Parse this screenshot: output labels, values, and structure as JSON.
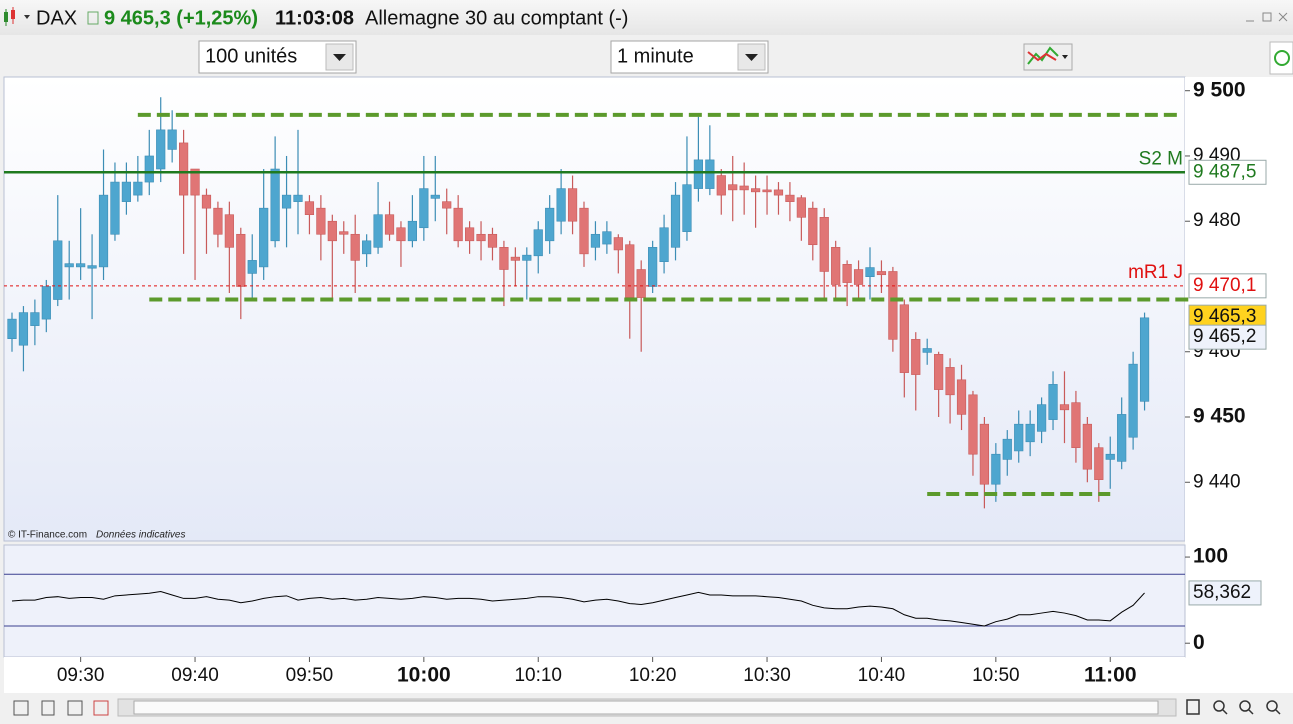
{
  "header": {
    "symbol": "DAX",
    "quote": "9 465,3 (+1,25%)",
    "time": "11:03:08",
    "description": "Allemagne 30 au comptant (-)"
  },
  "toolbar": {
    "quantity": "100 unités",
    "timeframe": "1 minute"
  },
  "chart_data": [
    {
      "type": "candlestick",
      "credit": "© IT-Finance.com",
      "note": "Données indicatives",
      "up_color": "#4ea6cf",
      "down_color": "#e07575",
      "x": [
        "09:24",
        "09:25",
        "09:26",
        "09:27",
        "09:28",
        "09:29",
        "09:30",
        "09:31",
        "09:32",
        "09:33",
        "09:34",
        "09:35",
        "09:36",
        "09:37",
        "09:38",
        "09:39",
        "09:40",
        "09:41",
        "09:42",
        "09:43",
        "09:44",
        "09:45",
        "09:46",
        "09:47",
        "09:48",
        "09:49",
        "09:50",
        "09:51",
        "09:52",
        "09:53",
        "09:54",
        "09:55",
        "09:56",
        "09:57",
        "09:58",
        "09:59",
        "10:00",
        "10:01",
        "10:02",
        "10:03",
        "10:04",
        "10:05",
        "10:06",
        "10:07",
        "10:08",
        "10:09",
        "10:10",
        "10:11",
        "10:12",
        "10:13",
        "10:14",
        "10:15",
        "10:16",
        "10:17",
        "10:18",
        "10:19",
        "10:20",
        "10:21",
        "10:22",
        "10:23",
        "10:24",
        "10:25",
        "10:26",
        "10:27",
        "10:28",
        "10:29",
        "10:30",
        "10:31",
        "10:32",
        "10:33",
        "10:34",
        "10:35",
        "10:36",
        "10:37",
        "10:38",
        "10:39",
        "10:40",
        "10:41",
        "10:42",
        "10:43",
        "10:44",
        "10:45",
        "10:46",
        "10:47",
        "10:48",
        "10:49",
        "10:50",
        "10:51",
        "10:52",
        "10:53",
        "10:54",
        "10:55",
        "10:56",
        "10:57",
        "10:58",
        "10:59",
        "11:00",
        "11:01",
        "11:02",
        "11:03"
      ],
      "open": [
        9462,
        9461,
        9464,
        9465,
        9468,
        9473,
        9473,
        9472.8,
        9473,
        9478,
        9483,
        9484,
        9486,
        9488,
        9491,
        9492,
        9488,
        9484,
        9482,
        9481,
        9478,
        9472,
        9473,
        9477,
        9482,
        9483,
        9483,
        9482,
        9480,
        9478.4,
        9478,
        9475,
        9476,
        9481,
        9479,
        9477,
        9479,
        9483.5,
        9483,
        9482,
        9479,
        9478,
        9478,
        9476,
        9474.5,
        9474,
        9474.7,
        9477,
        9480,
        9485,
        9482,
        9476,
        9476.5,
        9477.5,
        9476.4,
        9472.6,
        9470,
        9473.8,
        9476,
        9478.4,
        9485,
        9485,
        9487,
        9485.6,
        9485.4,
        9485,
        9484.8,
        9484.8,
        9484,
        9483.6,
        9482,
        9480.6,
        9476,
        9473.4,
        9472.6,
        9471.5,
        9472.3,
        9472.3,
        9467.2,
        9461.9,
        9459.9,
        9459.6,
        9457.6,
        9455.7,
        9453.4,
        9448.9,
        9439.7,
        9443.5,
        9444.8,
        9446.2,
        9447.8,
        9449.6,
        9451.9,
        9452.2,
        9448.9,
        9445.3,
        9443.5,
        9443.2,
        9446.9,
        9452.4
      ],
      "high": [
        9466,
        9467,
        9468,
        9471,
        9484,
        9477,
        9482,
        9478,
        9491,
        9489,
        9489,
        9490,
        9494,
        9499,
        9497,
        9494,
        9488,
        9485,
        9483,
        9483,
        9479,
        9478,
        9488,
        9493,
        9490,
        9494,
        9484,
        9484,
        9481,
        9480,
        9481,
        9478,
        9486,
        9483,
        9480,
        9484,
        9490,
        9490,
        9485,
        9484,
        9480,
        9480,
        9479,
        9477,
        9476,
        9476,
        9480,
        9484,
        9488,
        9487,
        9483,
        9480,
        9480,
        9478,
        9477,
        9474,
        9477,
        9481,
        9486,
        9493,
        9496,
        9494.7,
        9488,
        9490,
        9489,
        9487,
        9487,
        9486,
        9486,
        9484,
        9483,
        9482,
        9477,
        9474,
        9474,
        9476,
        9474,
        9473,
        9468,
        9463,
        9462,
        9460,
        9459,
        9458,
        9454,
        9450,
        9446,
        9448,
        9451,
        9451,
        9453,
        9457,
        9457,
        9454,
        9450,
        9446,
        9447,
        9453,
        9460,
        9466
      ],
      "low": [
        9460,
        9457,
        9461,
        9463,
        9467,
        9468,
        9471,
        9465,
        9471,
        9477,
        9481,
        9483,
        9484,
        9486,
        9489,
        9475,
        9471,
        9475,
        9476,
        9469,
        9465,
        9468,
        9471,
        9476,
        9476,
        9478,
        9478,
        9474,
        9468,
        9475,
        9469,
        9473,
        9475,
        9477,
        9473,
        9476,
        9477,
        9480,
        9478,
        9476,
        9475,
        9474,
        9474,
        9467,
        9470,
        9468,
        9472,
        9475,
        9478,
        9478,
        9473,
        9474,
        9475,
        9472,
        9462,
        9460,
        9469,
        9472,
        9474,
        9477,
        9483,
        9484,
        9481,
        9480,
        9481,
        9479,
        9481,
        9481,
        9480,
        9477,
        9474,
        9468,
        9468,
        9467,
        9468,
        9468,
        9469,
        9460,
        9453,
        9451,
        9458,
        9450,
        9449,
        9448,
        9441,
        9436,
        9437,
        9441,
        9443,
        9444,
        9446,
        9448,
        9446,
        9443,
        9440,
        9437,
        9439,
        9442,
        9445,
        9451
      ],
      "close": [
        9465,
        9466,
        9466,
        9470,
        9477,
        9473.5,
        9473.5,
        9473.2,
        9484,
        9486,
        9486,
        9486,
        9490,
        9494,
        9494,
        9484,
        9484,
        9482,
        9478,
        9476,
        9470,
        9474,
        9482,
        9488,
        9484,
        9484,
        9481,
        9478,
        9477,
        9478,
        9474,
        9477,
        9481,
        9478,
        9477,
        9480,
        9485,
        9484,
        9482,
        9477,
        9477,
        9477,
        9476,
        9472.6,
        9474,
        9474.8,
        9478.7,
        9482,
        9485,
        9480,
        9475,
        9478,
        9478.4,
        9475.6,
        9468.3,
        9468.3,
        9476,
        9479,
        9484,
        9485.6,
        9489.4,
        9489.4,
        9484,
        9484.8,
        9484.8,
        9484.5,
        9484.5,
        9484,
        9483,
        9480.6,
        9476.4,
        9472.3,
        9470.3,
        9470.6,
        9470.3,
        9472.9,
        9471.8,
        9461.9,
        9456.8,
        9456.5,
        9460.5,
        9454.2,
        9453.4,
        9450.4,
        9444.3,
        9439.7,
        9444.3,
        9446.6,
        9448.9,
        9448.9,
        9451.9,
        9455,
        9451.1,
        9445.3,
        9442,
        9440.4,
        9444.3,
        9450.4,
        9458.1,
        9465.2
      ],
      "ylim": [
        9431,
        9502.1
      ],
      "yticks": [
        {
          "value": 9440,
          "label": "9 440"
        },
        {
          "value": 9450,
          "label": "9 450"
        },
        {
          "value": 9460,
          "label": "9 460"
        },
        {
          "value": 9480,
          "label": "9 480"
        },
        {
          "value": 9490,
          "label": "9 490"
        },
        {
          "value": 9500,
          "label": "9 500"
        }
      ],
      "xticks": [
        "09:30",
        "09:40",
        "09:50",
        "10:00",
        "10:10",
        "10:20",
        "10:30",
        "10:40",
        "10:50",
        "11:00"
      ],
      "levels": [
        {
          "name": "S2 M",
          "value": 9487.5,
          "label": "9 487,5",
          "color": "#1f7a1f",
          "style": "solid"
        },
        {
          "name": "mR1 J",
          "value": 9470.1,
          "label": "9 470,1",
          "color": "#e01010",
          "style": "dashed"
        }
      ],
      "price_marks": [
        {
          "value": 9465.3,
          "label": "9 465,3",
          "color": "#ffd21f"
        },
        {
          "value": 9465.2,
          "label": "9 465,2",
          "color": "#eef2fb"
        }
      ],
      "drawn_levels": [
        {
          "value": 9496.3,
          "from": "09:35",
          "to": "11:06"
        },
        {
          "value": 9468,
          "from": "09:36",
          "to": "11:07"
        },
        {
          "value": 9438.2,
          "from": "10:44",
          "to": "11:00"
        }
      ],
      "drawn_color": "#5c9a2c"
    },
    {
      "type": "line",
      "color": "#000000",
      "values": [
        49,
        50,
        50,
        53,
        54,
        52,
        53,
        53,
        51,
        55,
        56,
        57,
        58,
        60,
        56,
        52,
        52,
        54,
        51,
        50,
        47,
        49,
        52,
        54,
        55,
        50,
        52,
        53,
        51,
        52,
        50,
        51,
        53,
        52,
        51,
        52,
        54,
        53,
        51,
        52,
        52,
        51,
        49,
        50,
        51,
        52,
        54,
        54,
        53,
        51,
        48,
        50,
        51,
        49,
        46,
        45,
        47,
        50,
        53,
        56,
        59,
        56,
        56,
        55,
        55,
        55,
        54,
        53,
        51,
        49,
        44,
        41,
        40,
        40,
        42,
        43,
        42,
        40,
        33,
        29,
        29,
        27,
        26,
        24,
        22,
        20,
        25,
        28,
        33,
        33,
        35,
        37,
        35,
        32,
        27,
        27,
        26,
        36,
        44,
        58.362
      ],
      "ylim": [
        -16,
        114
      ],
      "yticks": [
        0,
        100
      ],
      "levels": [
        80,
        20
      ],
      "level_color": "#3a3f8f",
      "last_marker": {
        "value": 58.362,
        "label": "58,362"
      }
    }
  ]
}
